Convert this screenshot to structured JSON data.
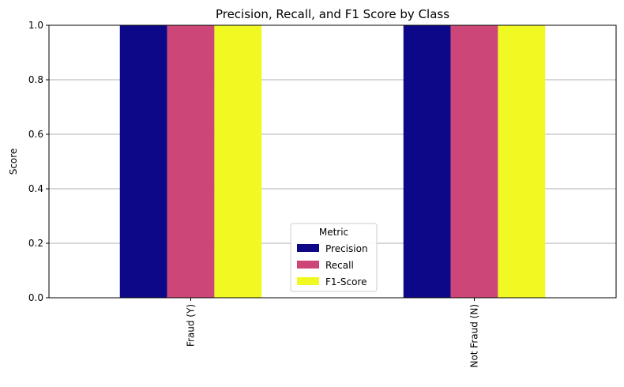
{
  "chart_data": {
    "type": "bar",
    "title": "Precision, Recall, and F1 Score by Class",
    "xlabel": "",
    "ylabel": "Score",
    "ylim": [
      0,
      1.0
    ],
    "yticks": [
      "0.0",
      "0.2",
      "0.4",
      "0.6",
      "0.8",
      "1.0"
    ],
    "categories": [
      "Fraud (Y)",
      "Not Fraud (N)"
    ],
    "series": [
      {
        "name": "Precision",
        "values": [
          1.0,
          1.0
        ],
        "color": "#0d0887"
      },
      {
        "name": "Recall",
        "values": [
          1.0,
          1.0
        ],
        "color": "#cc4778"
      },
      {
        "name": "F1-Score",
        "values": [
          1.0,
          1.0
        ],
        "color": "#f0f921"
      }
    ],
    "legend": {
      "title": "Metric",
      "placement": "lower center"
    },
    "grid": "y"
  }
}
